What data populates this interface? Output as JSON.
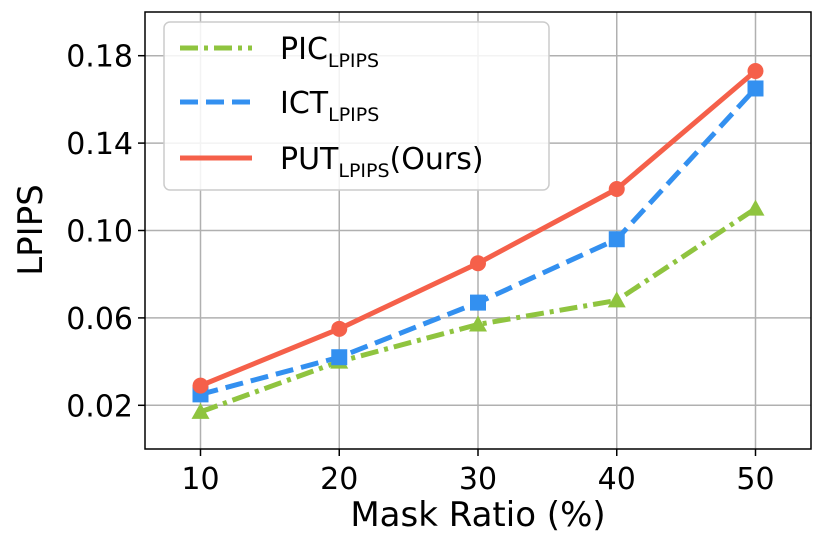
{
  "chart_data": {
    "type": "line",
    "xlabel": "Mask Ratio (%)",
    "ylabel": "LPIPS",
    "x": [
      10,
      20,
      30,
      40,
      50
    ],
    "xticks": [
      "10",
      "20",
      "30",
      "40",
      "50"
    ],
    "yticks": [
      "0.02",
      "0.06",
      "0.10",
      "0.14",
      "0.18"
    ],
    "xlim": [
      6,
      54
    ],
    "ylim": [
      0.0,
      0.2
    ],
    "grid": true,
    "legend_position": "top-left",
    "series": [
      {
        "name": "PIC",
        "name_sub": "LPIPS",
        "name_suffix": "",
        "values": [
          0.017,
          0.04,
          0.057,
          0.068,
          0.11
        ],
        "color": "#8fc43f",
        "dash": "dashdot",
        "marker": "triangle"
      },
      {
        "name": "ICT",
        "name_sub": "LPIPS",
        "name_suffix": "",
        "values": [
          0.025,
          0.042,
          0.067,
          0.096,
          0.165
        ],
        "color": "#3390f0",
        "dash": "dashed",
        "marker": "square"
      },
      {
        "name": "PUT",
        "name_sub": "LPIPS",
        "name_suffix": "(Ours)",
        "values": [
          0.029,
          0.055,
          0.085,
          0.119,
          0.173
        ],
        "color": "#f5604a",
        "dash": "solid",
        "marker": "circle"
      }
    ]
  }
}
